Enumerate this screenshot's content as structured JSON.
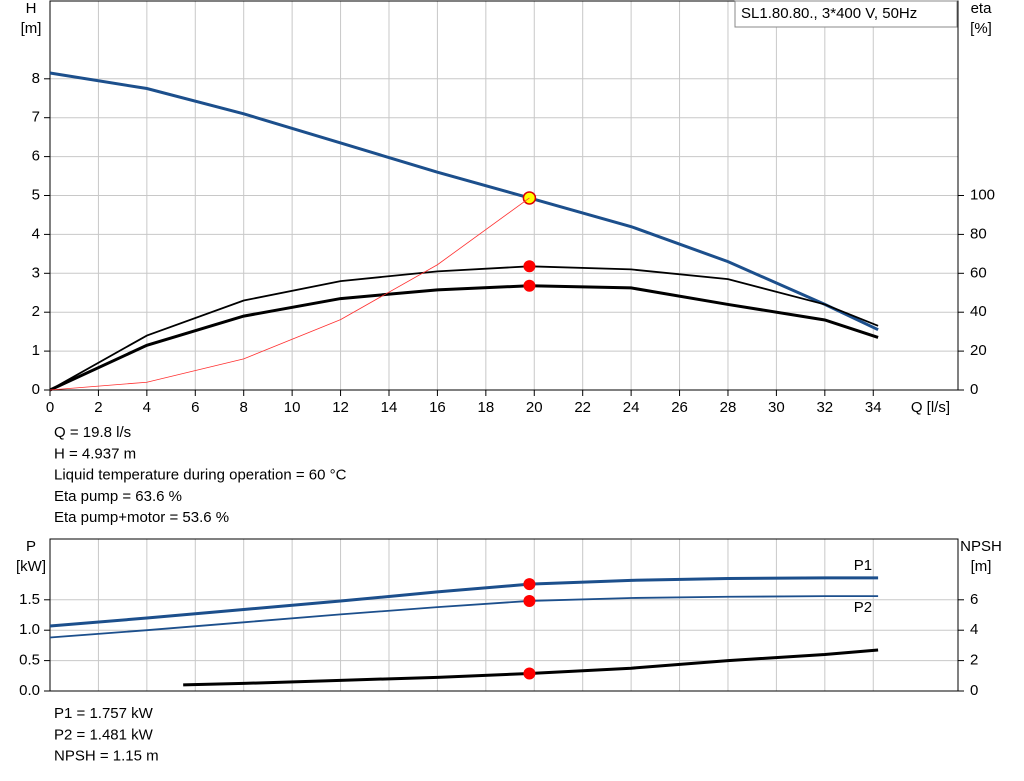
{
  "chart_data": [
    {
      "type": "line",
      "title": "SL1.80.80., 3*400 V, 50Hz",
      "xlabel": "Q [l/s]",
      "ylabel": [
        "H",
        "[m]"
      ],
      "y2label": [
        "eta",
        "[%]"
      ],
      "xlim": [
        0,
        37.5
      ],
      "xticks": [
        0,
        2,
        4,
        6,
        8,
        10,
        12,
        14,
        16,
        18,
        20,
        22,
        24,
        26,
        28,
        30,
        32,
        34
      ],
      "ylim": [
        0,
        10
      ],
      "yticks": [
        0,
        1,
        2,
        3,
        4,
        5,
        6,
        7,
        8
      ],
      "y2lim": [
        0,
        200
      ],
      "y2ticks": [
        0,
        20,
        40,
        60,
        80,
        100
      ],
      "grid": true,
      "duty_point": {
        "x": 19.8
      },
      "x": [
        0,
        4,
        8,
        12,
        16,
        19.8,
        24,
        28,
        32,
        34.2
      ],
      "series": [
        {
          "color": "#1c4f8c",
          "line_width": 3,
          "marker_color": "#ffff00",
          "values": [
            8.15,
            7.75,
            7.1,
            6.35,
            5.6,
            4.937,
            4.2,
            3.3,
            2.2,
            1.55
          ]
        },
        {
          "color": "#000000",
          "line_width": 1.8,
          "axis": "y2",
          "marker_color": "#ff0000",
          "values": [
            0,
            28,
            46,
            56,
            61,
            63.6,
            62,
            57,
            44,
            33
          ]
        },
        {
          "color": "#000000",
          "line_width": 3,
          "axis": "y2",
          "marker_color": "#ff0000",
          "values": [
            0,
            23,
            38,
            47,
            51.5,
            53.6,
            52.5,
            44,
            36,
            27
          ]
        },
        {
          "color": "#ff3030",
          "line_width": 0.8,
          "x": [
            0,
            4,
            8,
            12,
            16,
            19.8
          ],
          "values": [
            0,
            0.2,
            0.8,
            1.81,
            3.22,
            4.937
          ]
        }
      ],
      "annotations": [
        "Q = 19.8 l/s",
        "H = 4.937 m",
        "Liquid temperature during operation = 60 °C",
        "Eta pump = 63.6 %",
        "Eta pump+motor = 53.6 %"
      ]
    },
    {
      "type": "line",
      "ylabel": [
        "P",
        "[kW]"
      ],
      "y2label": [
        "NPSH",
        "[m]"
      ],
      "xlim": [
        0,
        37.5
      ],
      "ylim": [
        0,
        2.5
      ],
      "yticks": [
        {
          "value": 0,
          "label": "0.0"
        },
        0.5,
        {
          "value": 1,
          "label": "1.0"
        },
        1.5
      ],
      "y2lim": [
        0,
        10
      ],
      "y2ticks": [
        0,
        2,
        4,
        6
      ],
      "grid": true,
      "duty_point": {
        "x": 19.8
      },
      "x": [
        0,
        4,
        8,
        12,
        16,
        19.8,
        24,
        28,
        32,
        34.2
      ],
      "series": [
        {
          "name": "P1",
          "label_pos": "above",
          "color": "#1c4f8c",
          "line_width": 3,
          "marker_color": "#ff0000",
          "values": [
            1.07,
            1.2,
            1.34,
            1.48,
            1.63,
            1.757,
            1.82,
            1.85,
            1.86,
            1.86
          ]
        },
        {
          "name": "P2",
          "label_pos": "below",
          "color": "#1c4f8c",
          "line_width": 1.8,
          "marker_color": "#ff0000",
          "values": [
            0.88,
            1.0,
            1.13,
            1.26,
            1.38,
            1.481,
            1.53,
            1.55,
            1.56,
            1.56
          ]
        },
        {
          "color": "#000000",
          "line_width": 3,
          "axis": "y2",
          "marker_color": "#ff0000",
          "x": [
            5.5,
            8,
            12,
            16,
            19.8,
            24,
            28,
            32,
            34.2
          ],
          "values": [
            0.4,
            0.5,
            0.7,
            0.9,
            1.15,
            1.5,
            2.0,
            2.4,
            2.7
          ]
        }
      ],
      "annotations": [
        "P1 = 1.757 kW",
        "P2 = 1.481 kW",
        "NPSH = 1.15 m"
      ]
    }
  ]
}
